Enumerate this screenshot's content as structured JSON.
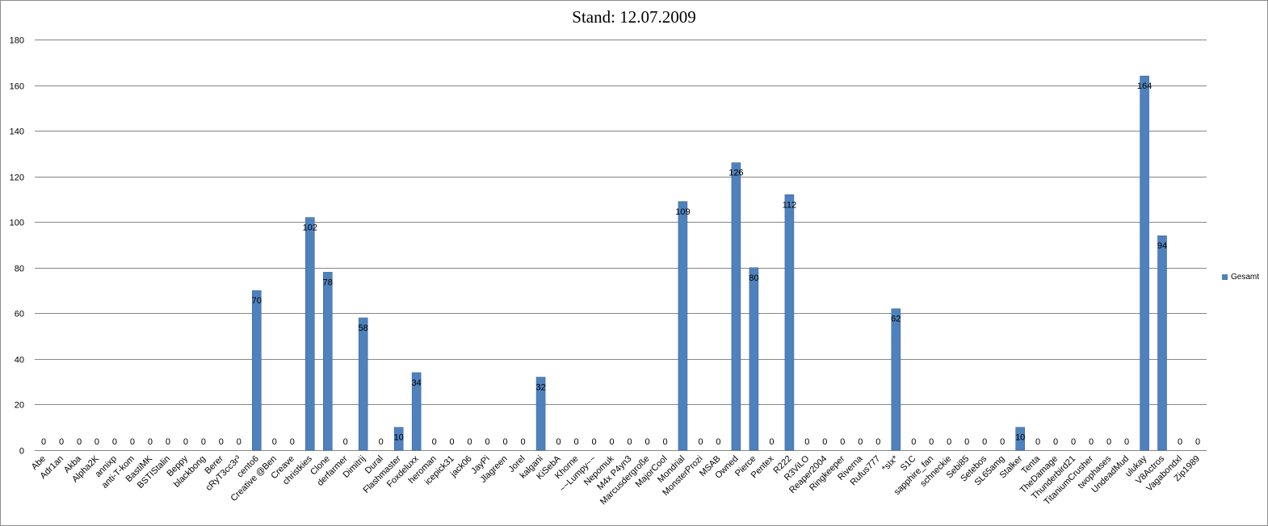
{
  "chart_data": {
    "type": "bar",
    "title": "Stand: 12.07.2009",
    "xlabel": "",
    "ylabel": "",
    "ylim": [
      0,
      180
    ],
    "yticks": [
      0,
      20,
      40,
      60,
      80,
      100,
      120,
      140,
      160,
      180
    ],
    "grid": true,
    "legend_position": "right",
    "bar_color": "#4f81bd",
    "categories": [
      "Abe",
      "Adr1an",
      "Akba",
      "Alpha2K",
      "annixp",
      "anti-T-kom",
      "BastiMK",
      "BSTIStalin",
      "Beppy",
      "blackbong",
      "Berer",
      "cRyT3cc3r³",
      "cento6",
      "Creative @Ben",
      "Creave",
      "christkies",
      "Clone",
      "derfarmer",
      "Dimitrij",
      "Dural",
      "Flashmaster",
      "Foxdeluxx",
      "heroman",
      "icepick31",
      "jack06",
      "JayPi",
      "Jlagreen",
      "Jorel",
      "kalgani",
      "KiSebA",
      "Khorne",
      "~~Lumpy~~",
      "Nepomuk",
      "M4x P4yn3",
      "Marcusdergroße",
      "MajorCool",
      "Mondrial",
      "MonsterProzi",
      "MSAB",
      "Owned",
      "Pierce",
      "Pentex",
      "R222",
      "R3ViLO",
      "Reaper2004",
      "Ringkeeper",
      "Riverna",
      "Rufus777",
      "*sIx*",
      "S1C",
      "sapphire_fan",
      "schneckie",
      "Sebi85",
      "Setebos",
      "SL65amg",
      "Stalker",
      "Tenta",
      "TheDamage",
      "Thunderbird21",
      "TitaniumCrusher",
      "twophases",
      "UndeadMud",
      "ulukay",
      "V8Actros",
      "Vagabondxl",
      "Zip1989"
    ],
    "series": [
      {
        "name": "Gesamt",
        "values": [
          0,
          0,
          0,
          0,
          0,
          0,
          0,
          0,
          0,
          0,
          0,
          0,
          70,
          0,
          0,
          102,
          78,
          0,
          58,
          0,
          10,
          34,
          0,
          0,
          0,
          0,
          0,
          0,
          32,
          0,
          0,
          0,
          0,
          0,
          0,
          0,
          109,
          0,
          0,
          126,
          80,
          0,
          112,
          0,
          0,
          0,
          0,
          0,
          62,
          0,
          0,
          0,
          0,
          0,
          0,
          10,
          0,
          0,
          0,
          0,
          0,
          0,
          164,
          94,
          0,
          0
        ]
      }
    ]
  }
}
